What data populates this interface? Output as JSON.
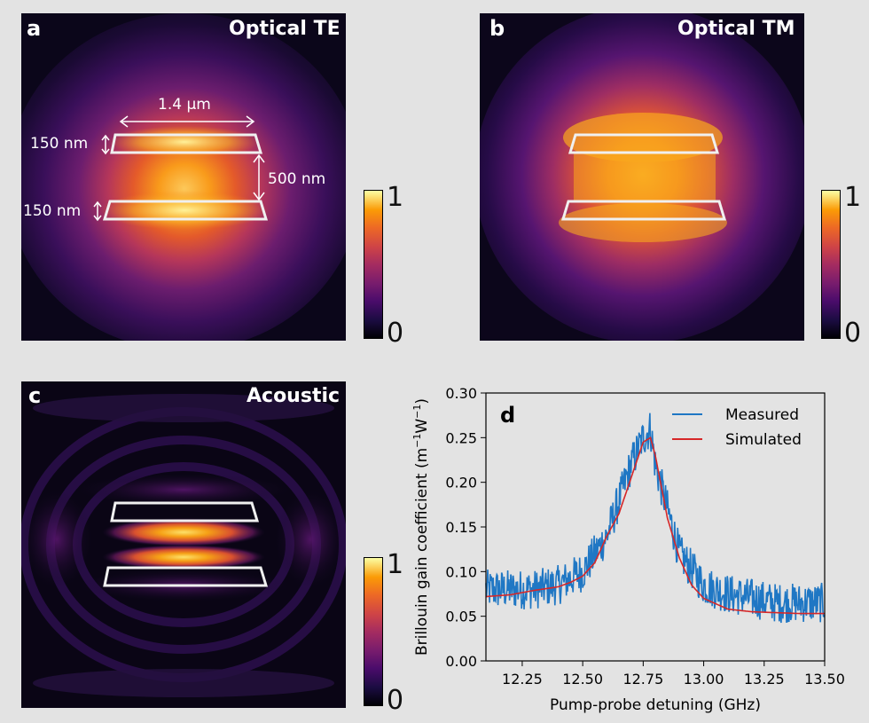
{
  "panels": {
    "a": {
      "letter": "a",
      "title": "Optical TE",
      "dims": {
        "width": "1.4 μm",
        "thick_top": "150 nm",
        "thick_bottom": "150 nm",
        "gap": "500 nm"
      }
    },
    "b": {
      "letter": "b",
      "title": "Optical TM"
    },
    "c": {
      "letter": "c",
      "title": "Acoustic"
    }
  },
  "colorbar": {
    "min_label": "0",
    "max_label": "1",
    "colormap": "inferno"
  },
  "chart_data": {
    "type": "line",
    "panel_letter": "d",
    "title": "",
    "xlabel": "Pump-probe detuning (GHz)",
    "ylabel_main": "Brillouin gain coefficient (m",
    "ylabel_sup1": "−1",
    "ylabel_mid": "W",
    "ylabel_sup2": "−1",
    "ylabel_end": ")",
    "xlim": [
      12.1,
      13.5
    ],
    "ylim": [
      0.0,
      0.3
    ],
    "xticks": [
      "12.25",
      "12.50",
      "12.75",
      "13.00",
      "13.25",
      "13.50"
    ],
    "yticks": [
      "0.00",
      "0.05",
      "0.10",
      "0.15",
      "0.20",
      "0.25",
      "0.30"
    ],
    "legend": {
      "position": "top-right"
    },
    "series": [
      {
        "name": "Measured",
        "color": "#1f77c4",
        "type": "noisy",
        "note": "noisy measured data following the simulated trend",
        "x": [
          12.1,
          12.2,
          12.3,
          12.4,
          12.5,
          12.6,
          12.65,
          12.7,
          12.75,
          12.78,
          12.8,
          12.85,
          12.9,
          13.0,
          13.1,
          13.2,
          13.3,
          13.4,
          13.5
        ],
        "y": [
          0.08,
          0.08,
          0.08,
          0.085,
          0.1,
          0.14,
          0.18,
          0.22,
          0.25,
          0.26,
          0.22,
          0.17,
          0.12,
          0.085,
          0.075,
          0.07,
          0.065,
          0.065,
          0.065
        ]
      },
      {
        "name": "Simulated",
        "color": "#d62728",
        "type": "smooth",
        "x": [
          12.1,
          12.2,
          12.3,
          12.4,
          12.45,
          12.5,
          12.55,
          12.6,
          12.65,
          12.7,
          12.75,
          12.78,
          12.8,
          12.85,
          12.9,
          12.95,
          13.0,
          13.1,
          13.2,
          13.3,
          13.4,
          13.5
        ],
        "y": [
          0.072,
          0.074,
          0.079,
          0.083,
          0.088,
          0.095,
          0.11,
          0.14,
          0.165,
          0.205,
          0.245,
          0.25,
          0.23,
          0.16,
          0.115,
          0.085,
          0.07,
          0.058,
          0.055,
          0.054,
          0.053,
          0.053
        ]
      }
    ]
  }
}
